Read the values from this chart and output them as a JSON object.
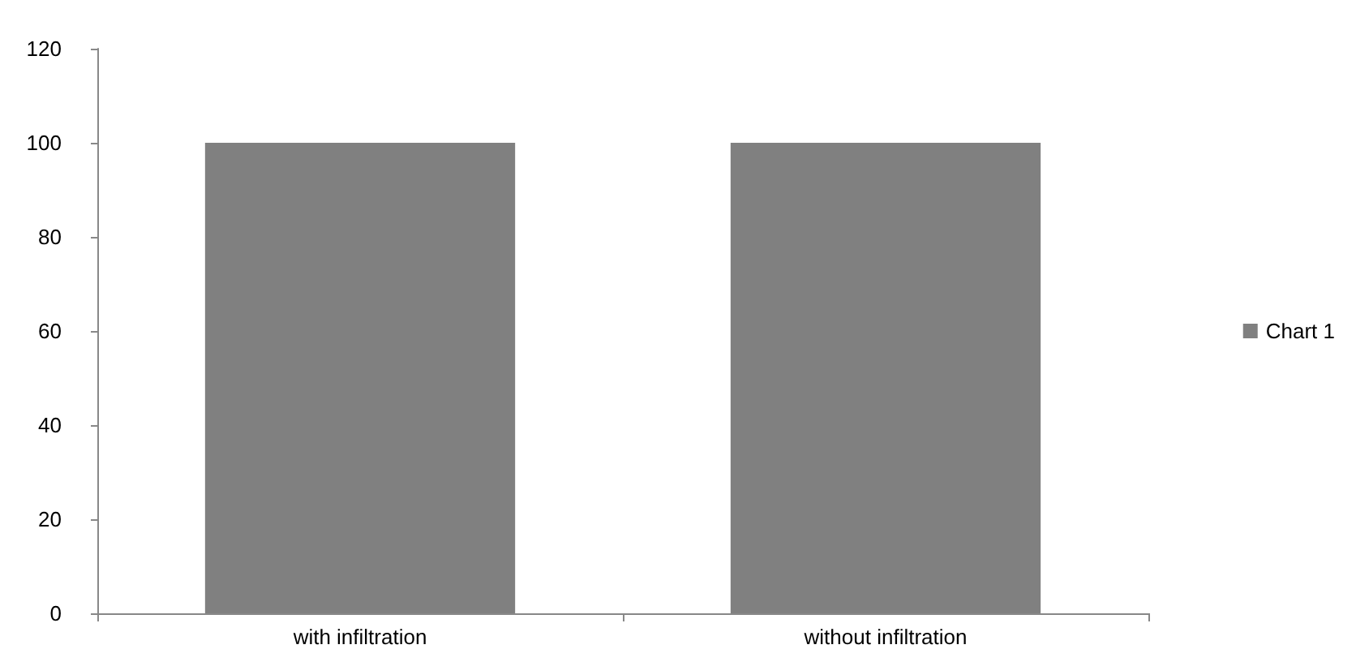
{
  "chart_data": {
    "type": "bar",
    "categories": [
      "with infiltration",
      "without infiltration"
    ],
    "series": [
      {
        "name": "Chart 1",
        "color": "#808080",
        "values": [
          100,
          100
        ]
      }
    ],
    "ylim": [
      0,
      120
    ],
    "yticks": [
      0,
      20,
      40,
      60,
      80,
      100,
      120
    ],
    "grid": false,
    "legend": "right"
  }
}
